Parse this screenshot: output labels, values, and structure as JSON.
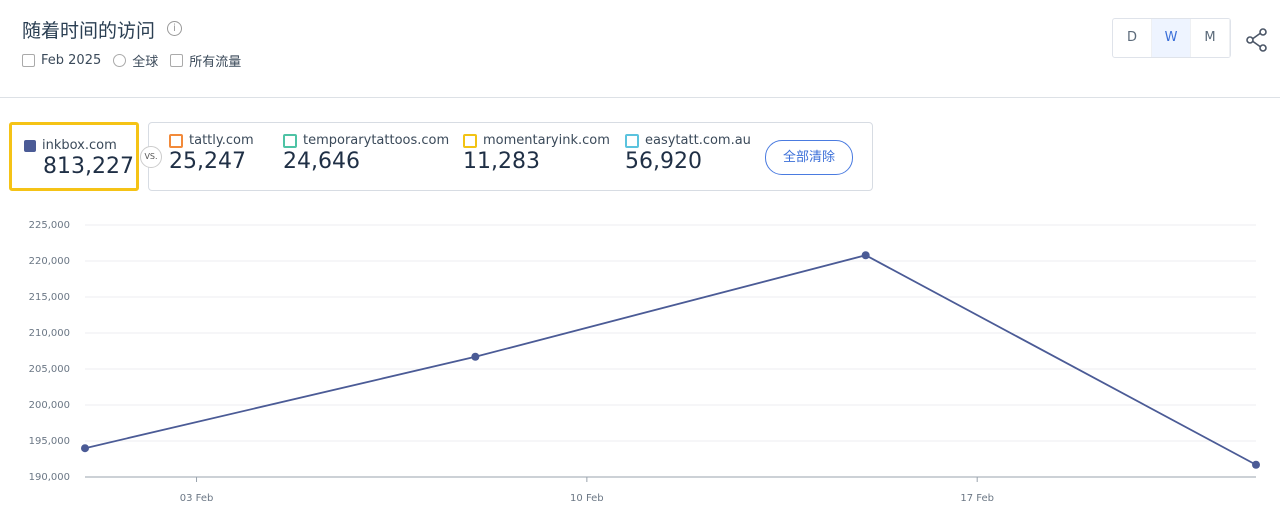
{
  "header": {
    "title": "随着时间的访问",
    "date": "Feb 2025",
    "region": "全球",
    "traffic": "所有流量",
    "granularity": [
      "D",
      "W",
      "M"
    ]
  },
  "primary": {
    "total": "813,227"
  },
  "vs": "VS.",
  "competitors": [
    {
      "name": "tattly.com",
      "total": "25,247",
      "color": "#f28a3a"
    },
    {
      "name": "temporarytattoos.com",
      "total": "24,646",
      "color": "#4ec3a5"
    },
    {
      "name": "momentaryink.com",
      "total": "11,283",
      "color": "#f2c314"
    },
    {
      "name": "easytatt.com.au",
      "total": "56,920",
      "color": "#5bc3de"
    }
  ],
  "clear": "全部清除",
  "chart_data": {
    "type": "line",
    "x": [
      "01 Feb",
      "08 Feb",
      "15 Feb",
      "22 Feb"
    ],
    "xlim": [
      "01 Feb",
      "22 Feb"
    ],
    "xticks": [
      "03 Feb",
      "10 Feb",
      "17 Feb"
    ],
    "ylim": [
      190000,
      225000
    ],
    "yticks": [
      {
        "value": 190000,
        "label": "190,000"
      },
      {
        "value": 195000,
        "label": "195,000"
      },
      {
        "value": 200000,
        "label": "200,000"
      },
      {
        "value": 205000,
        "label": "205,000"
      },
      {
        "value": 210000,
        "label": "210,000"
      },
      {
        "value": 215000,
        "label": "215,000"
      },
      {
        "value": 220000,
        "label": "220,000"
      },
      {
        "value": 225000,
        "label": "225,000"
      }
    ],
    "grid": true,
    "series": [
      {
        "name": "inkbox.com",
        "color": "#4b5b96",
        "values": [
          194000,
          206700,
          220800,
          191700
        ]
      }
    ]
  }
}
